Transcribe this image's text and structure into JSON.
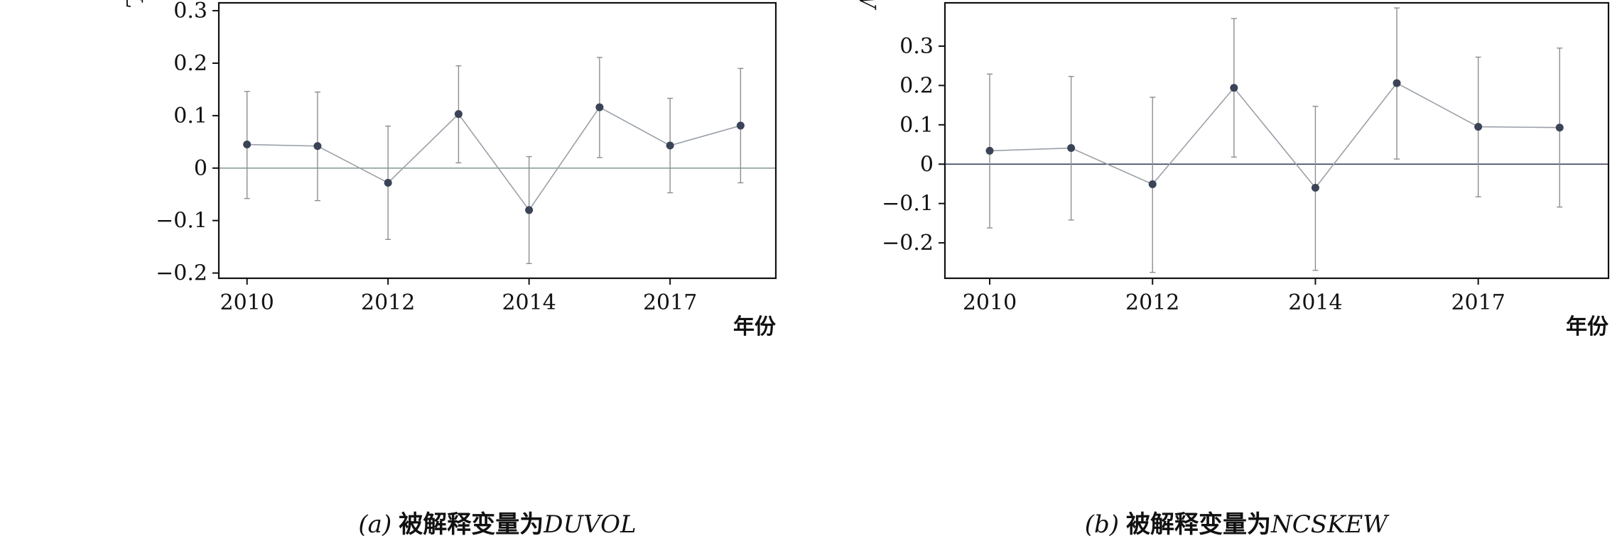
{
  "chart_data": [
    {
      "type": "line",
      "panel_label": "(a)",
      "caption_prefix": "被解释变量为",
      "caption_var": "DUVOL",
      "xlabel": "年份",
      "ylabel": "DUVOL",
      "ylim": [
        -0.21,
        0.315
      ],
      "y_ticks": [
        -0.2,
        -0.1,
        0,
        0.1,
        0.2,
        0.3
      ],
      "y_tick_labels": [
        "−0.2",
        "−0.1",
        "0",
        "0.1",
        "0.2",
        "0.3"
      ],
      "x_tick_labels": [
        "2010",
        "2012",
        "2014",
        "2017"
      ],
      "x_tick_positions": [
        1,
        3,
        5,
        7
      ],
      "xlim": [
        0.6,
        8.5
      ],
      "zero_line": true,
      "series": [
        {
          "x": [
            1,
            2,
            3,
            4,
            5,
            6,
            7,
            8
          ],
          "y": [
            0.045,
            0.042,
            -0.028,
            0.103,
            -0.08,
            0.116,
            0.043,
            0.081
          ],
          "lower": [
            -0.058,
            -0.062,
            -0.136,
            0.01,
            -0.182,
            0.02,
            -0.047,
            -0.028
          ],
          "upper": [
            0.146,
            0.145,
            0.08,
            0.195,
            0.022,
            0.211,
            0.133,
            0.19
          ]
        }
      ],
      "color_point": "#3b4357",
      "color_line": "#9aa0a8",
      "color_zero": "#8aa09a"
    },
    {
      "type": "line",
      "panel_label": "(b)",
      "caption_prefix": "被解释变量为",
      "caption_var": "NCSKEW",
      "xlabel": "年份",
      "ylabel": "NCSKEW",
      "ylim": [
        -0.29,
        0.41
      ],
      "y_ticks": [
        -0.2,
        -0.1,
        0,
        0.1,
        0.2,
        0.3
      ],
      "y_tick_labels": [
        "−0.2",
        "−0.1",
        "0",
        "0.1",
        "0.2",
        "0.3"
      ],
      "x_tick_labels": [
        "2010",
        "2012",
        "2014",
        "2017"
      ],
      "x_tick_positions": [
        1,
        3,
        5,
        7
      ],
      "xlim": [
        0.45,
        8.6
      ],
      "zero_line": true,
      "series": [
        {
          "x": [
            1,
            2,
            3,
            4,
            5,
            6,
            7,
            8
          ],
          "y": [
            0.034,
            0.041,
            -0.051,
            0.194,
            -0.06,
            0.206,
            0.095,
            0.093
          ],
          "lower": [
            -0.162,
            -0.142,
            -0.275,
            0.018,
            -0.27,
            0.013,
            -0.083,
            -0.109
          ],
          "upper": [
            0.229,
            0.223,
            0.17,
            0.37,
            0.147,
            0.397,
            0.272,
            0.295
          ]
        }
      ],
      "color_point": "#3b4357",
      "color_line": "#9aa0a8",
      "color_zero": "#2f3852"
    }
  ]
}
